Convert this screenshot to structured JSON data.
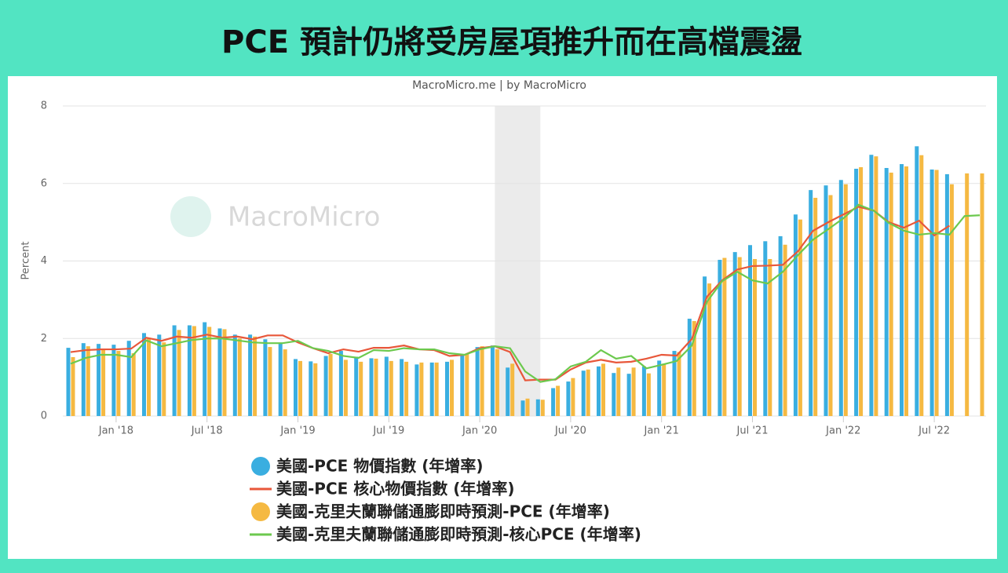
{
  "chart_data": {
    "type": "bar",
    "title": "PCE 預計仍將受房屋項推升而在高檔震盪",
    "subtitle": "MacroMicro.me | by MacroMicro",
    "watermark": "MacroMicro",
    "y_label": "Percent",
    "x": [
      "2017-10",
      "2017-11",
      "2017-12",
      "2018-01",
      "2018-02",
      "2018-03",
      "2018-04",
      "2018-05",
      "2018-06",
      "2018-07",
      "2018-08",
      "2018-09",
      "2018-10",
      "2018-11",
      "2018-12",
      "2019-01",
      "2019-02",
      "2019-03",
      "2019-04",
      "2019-05",
      "2019-06",
      "2019-07",
      "2019-08",
      "2019-09",
      "2019-10",
      "2019-11",
      "2019-12",
      "2020-01",
      "2020-02",
      "2020-03",
      "2020-04",
      "2020-05",
      "2020-06",
      "2020-07",
      "2020-08",
      "2020-09",
      "2020-10",
      "2020-11",
      "2020-12",
      "2021-01",
      "2021-02",
      "2021-03",
      "2021-04",
      "2021-05",
      "2021-06",
      "2021-07",
      "2021-08",
      "2021-09",
      "2021-10",
      "2021-11",
      "2021-12",
      "2022-01",
      "2022-02",
      "2022-03",
      "2022-04",
      "2022-05",
      "2022-06",
      "2022-07",
      "2022-08",
      "2022-09",
      "2022-10"
    ],
    "shaded_range": [
      "2020-02",
      "2020-05"
    ],
    "series": [
      {
        "name": "美國-PCE 物價指數 (年增率)",
        "type": "bar",
        "color": "#3aaee0",
        "values": [
          1.76,
          1.88,
          1.86,
          1.84,
          1.94,
          2.14,
          2.1,
          2.34,
          2.34,
          2.42,
          2.26,
          2.1,
          2.1,
          1.98,
          1.88,
          1.47,
          1.41,
          1.55,
          1.68,
          1.53,
          1.49,
          1.53,
          1.47,
          1.33,
          1.38,
          1.4,
          1.59,
          1.78,
          1.82,
          1.25,
          0.4,
          0.43,
          0.72,
          0.89,
          1.17,
          1.28,
          1.11,
          1.09,
          1.28,
          1.43,
          1.68,
          2.51,
          3.6,
          4.03,
          4.23,
          4.41,
          4.51,
          4.64,
          5.2,
          5.83,
          5.95,
          6.09,
          6.38,
          6.74,
          6.4,
          6.5,
          6.96,
          6.36,
          6.24,
          null,
          null
        ]
      },
      {
        "name": "美國-PCE 核心物價指數 (年增率)",
        "type": "line",
        "color": "#e8573a",
        "values": [
          1.65,
          1.7,
          1.72,
          1.72,
          1.74,
          2.02,
          1.94,
          2.05,
          2.02,
          2.1,
          2.02,
          2.05,
          1.98,
          2.08,
          2.08,
          1.9,
          1.75,
          1.62,
          1.72,
          1.66,
          1.76,
          1.76,
          1.82,
          1.72,
          1.7,
          1.55,
          1.58,
          1.75,
          1.8,
          1.65,
          0.92,
          0.94,
          0.94,
          1.2,
          1.38,
          1.45,
          1.38,
          1.4,
          1.48,
          1.58,
          1.56,
          1.99,
          3.08,
          3.5,
          3.78,
          3.87,
          3.88,
          3.9,
          4.25,
          4.78,
          5.0,
          5.2,
          5.4,
          5.3,
          5.0,
          4.86,
          5.04,
          4.66,
          4.91,
          null,
          null
        ]
      },
      {
        "name": "美國-克里夫蘭聯儲通膨即時預測-PCE (年增率)",
        "type": "bar",
        "color": "#f5b942",
        "values": [
          1.52,
          1.8,
          1.72,
          1.68,
          1.62,
          2.02,
          1.9,
          2.22,
          2.32,
          2.3,
          2.24,
          2.0,
          2.05,
          1.78,
          1.72,
          1.42,
          1.36,
          1.6,
          1.45,
          1.4,
          1.48,
          1.42,
          1.4,
          1.38,
          1.38,
          1.45,
          1.6,
          1.8,
          1.72,
          1.35,
          0.45,
          0.42,
          0.78,
          0.98,
          1.2,
          1.35,
          1.25,
          1.25,
          1.1,
          1.35,
          1.65,
          2.45,
          3.42,
          4.08,
          4.1,
          4.05,
          4.05,
          4.42,
          5.07,
          5.63,
          5.7,
          5.98,
          6.42,
          6.7,
          6.28,
          6.44,
          6.73,
          6.35,
          5.98,
          6.26,
          6.26
        ]
      },
      {
        "name": "美國-克里夫蘭聯儲通膨即時預測-核心PCE (年增率)",
        "type": "line",
        "color": "#6cc94e",
        "values": [
          1.35,
          1.5,
          1.58,
          1.58,
          1.52,
          1.95,
          1.8,
          1.88,
          1.96,
          2.0,
          2.0,
          1.95,
          1.9,
          1.88,
          1.88,
          1.94,
          1.75,
          1.68,
          1.55,
          1.5,
          1.7,
          1.68,
          1.75,
          1.72,
          1.72,
          1.62,
          1.58,
          1.72,
          1.8,
          1.75,
          1.15,
          0.88,
          0.95,
          1.28,
          1.4,
          1.7,
          1.48,
          1.55,
          1.23,
          1.32,
          1.42,
          1.82,
          2.95,
          3.48,
          3.72,
          3.5,
          3.42,
          3.72,
          4.15,
          4.55,
          4.82,
          5.1,
          5.45,
          5.3,
          4.98,
          4.78,
          4.68,
          4.72,
          4.68,
          5.16,
          5.18
        ]
      }
    ],
    "ylim": [
      0,
      8
    ],
    "yticks": [
      0,
      2,
      4,
      6,
      8
    ],
    "xticks": [
      {
        "value": "2018-01",
        "label": "Jan '18"
      },
      {
        "value": "2018-07",
        "label": "Jul '18"
      },
      {
        "value": "2019-01",
        "label": "Jan '19"
      },
      {
        "value": "2019-07",
        "label": "Jul '19"
      },
      {
        "value": "2020-01",
        "label": "Jan '20"
      },
      {
        "value": "2020-07",
        "label": "Jul '20"
      },
      {
        "value": "2021-01",
        "label": "Jan '21"
      },
      {
        "value": "2021-07",
        "label": "Jul '21"
      },
      {
        "value": "2022-01",
        "label": "Jan '22"
      },
      {
        "value": "2022-07",
        "label": "Jul '22"
      }
    ],
    "grid": true
  }
}
